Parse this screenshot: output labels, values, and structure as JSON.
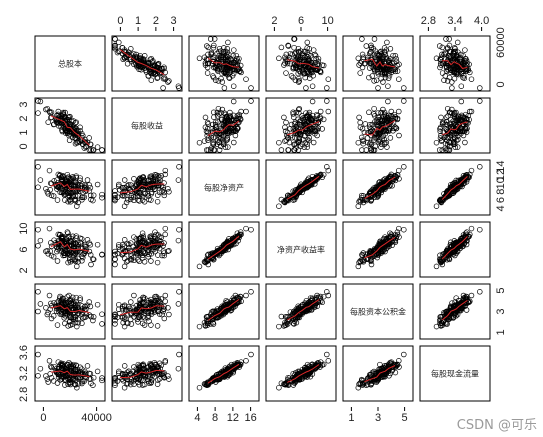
{
  "watermark": "CSDN @可乐",
  "chart_data": {
    "type": "scatter",
    "subtype": "scatterplot-matrix",
    "variables": [
      "总股本",
      "每股收益",
      "每股净资产",
      "净资产收益率",
      "每股资本公积金",
      "每股现金流量"
    ],
    "tick_labels": {
      "总股本": [
        "0",
        "40000"
      ],
      "总股本_right": [
        "0",
        "60000"
      ],
      "每股收益": [
        "0",
        "1",
        "2",
        "3"
      ],
      "每股收益_left": [
        "0",
        "1",
        "2",
        "3"
      ],
      "每股净资产": [
        "4",
        "8",
        "12",
        "16"
      ],
      "每股净资产_right": [
        "4",
        "6",
        "8",
        "10",
        "12",
        "14"
      ],
      "净资产收益率": [
        "2",
        "6",
        "10"
      ],
      "净资产收益率_left": [
        "2",
        "6",
        "10"
      ],
      "每股资本公积金": [
        "1",
        "3",
        "5"
      ],
      "每股资本公积金_right": [
        "1",
        "3",
        "5"
      ],
      "每股现金流量": [
        "2.8",
        "3.4",
        "4.0"
      ],
      "每股现金流量_left": [
        "2.8",
        "3.2",
        "3.6"
      ]
    },
    "ranges": {
      "总股本": [
        0,
        90000
      ],
      "每股收益": [
        0,
        3
      ],
      "每股净资产": [
        3,
        17
      ],
      "净资产收益率": [
        1,
        13
      ],
      "每股资本公积金": [
        0,
        6
      ],
      "每股现金流量": [
        2.8,
        4.1
      ]
    },
    "smoother": "lowess",
    "marker": "open-circle",
    "colors": {
      "points": "#000000",
      "smooth": "#d62728",
      "frame": "#000000"
    }
  }
}
